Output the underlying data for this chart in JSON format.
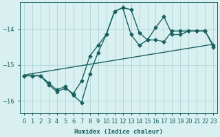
{
  "xlabel": "Humidex (Indice chaleur)",
  "bg_color": "#d8f0f0",
  "grid_color": "#aed4d4",
  "line_color": "#1a6060",
  "marker": "D",
  "markersize": 2.5,
  "linewidth": 1.0,
  "xlim": [
    -0.5,
    23.5
  ],
  "ylim": [
    -16.35,
    -13.25
  ],
  "yticks": [
    -16,
    -15,
    -14
  ],
  "xticks": [
    0,
    1,
    2,
    3,
    4,
    5,
    6,
    7,
    8,
    9,
    10,
    11,
    12,
    13,
    14,
    15,
    16,
    17,
    18,
    19,
    20,
    21,
    22,
    23
  ],
  "series": [
    {
      "x": [
        0,
        1,
        2,
        3,
        4,
        5,
        6,
        7,
        8,
        9,
        10,
        11,
        12,
        13,
        14,
        15,
        16,
        17,
        18,
        19,
        20,
        21,
        22,
        23
      ],
      "y": [
        -15.3,
        -15.3,
        -15.3,
        -15.55,
        -15.75,
        -15.65,
        -15.8,
        -15.45,
        -14.75,
        -14.45,
        -14.15,
        -13.5,
        -13.4,
        -13.45,
        -14.1,
        -14.3,
        -14.3,
        -14.35,
        -14.05,
        -14.05,
        -14.05,
        -14.05,
        -14.05,
        -14.45
      ],
      "has_markers": true
    },
    {
      "x": [
        0,
        1,
        2,
        3,
        4,
        5,
        6,
        7,
        8,
        9,
        10,
        11,
        12,
        13,
        14,
        15,
        16,
        17,
        18,
        19,
        20,
        21,
        22,
        23
      ],
      "y": [
        -15.3,
        -15.3,
        -15.3,
        -15.5,
        -15.7,
        -15.6,
        -15.85,
        -16.05,
        -15.25,
        -14.65,
        -14.15,
        -13.5,
        -13.4,
        -14.15,
        -14.45,
        -14.3,
        -13.95,
        -13.65,
        -14.15,
        -14.15,
        -14.05,
        -14.05,
        -14.05,
        -14.5
      ],
      "has_markers": true
    },
    {
      "x": [
        0,
        23
      ],
      "y": [
        -15.28,
        -14.42
      ],
      "has_markers": false
    }
  ]
}
